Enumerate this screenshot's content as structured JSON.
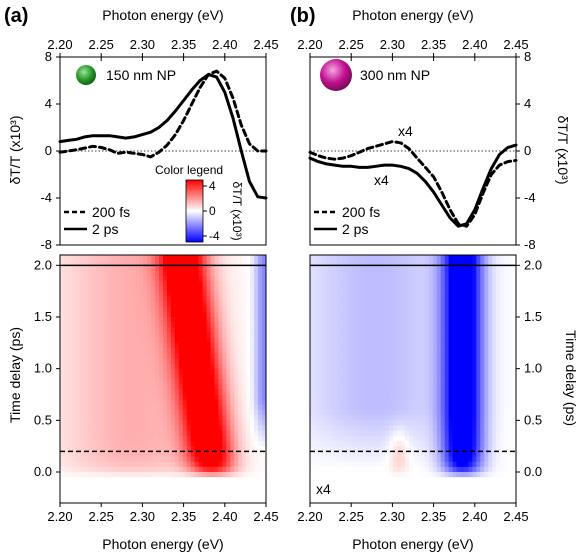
{
  "panels": [
    {
      "id": "a",
      "label": "(a)",
      "np_label": "150 nm NP",
      "np_color": "#2a9a2a",
      "top_axis_label": "Photon energy (eV)",
      "bottom_axis_label": "Photon energy (eV)",
      "left_axis_label": "δT/T (x10³)",
      "time_axis_label": "Time delay (ps)",
      "legend": [
        "200 fs",
        "2 ps"
      ],
      "colorbar_title": "Color legend",
      "colorbar_label": "δT/T (x10³)",
      "colorbar_ticks": [
        "4",
        "0",
        "-4"
      ]
    },
    {
      "id": "b",
      "label": "(b)",
      "np_label": "300 nm NP",
      "np_color": "#c0108f",
      "top_axis_label": "Photon energy (eV)",
      "bottom_axis_label": "Photon energy (eV)",
      "right_axis_label": "δT/T (x10³)",
      "time_axis_label": "Time delay (ps)",
      "legend": [
        "200 fs",
        "2 ps"
      ],
      "annotations": [
        "x4",
        "x4",
        "x4"
      ]
    }
  ],
  "chart_data": [
    {
      "type": "line",
      "panel": "a",
      "xlim": [
        2.2,
        2.45
      ],
      "ylim": [
        -8,
        8
      ],
      "x_ticks": [
        "2.20",
        "2.25",
        "2.30",
        "2.35",
        "2.40",
        "2.45"
      ],
      "y_ticks": [
        "8",
        "4",
        "0",
        "-4",
        "-8"
      ],
      "series": [
        {
          "name": "200 fs",
          "style": "dashed",
          "x": [
            2.2,
            2.22,
            2.24,
            2.25,
            2.26,
            2.27,
            2.28,
            2.29,
            2.3,
            2.31,
            2.32,
            2.33,
            2.34,
            2.35,
            2.36,
            2.37,
            2.38,
            2.39,
            2.4,
            2.41,
            2.42,
            2.43,
            2.44,
            2.45
          ],
          "y": [
            -0.1,
            0.1,
            0.4,
            0.3,
            0.1,
            -0.2,
            -0.1,
            -0.2,
            -0.3,
            -0.5,
            -0.1,
            0.5,
            1.4,
            2.6,
            4.0,
            5.4,
            6.5,
            6.8,
            6.2,
            4.5,
            2.2,
            0.6,
            0.0,
            0.0
          ]
        },
        {
          "name": "2 ps",
          "style": "solid",
          "x": [
            2.2,
            2.21,
            2.22,
            2.23,
            2.24,
            2.25,
            2.26,
            2.27,
            2.28,
            2.29,
            2.3,
            2.31,
            2.32,
            2.33,
            2.34,
            2.35,
            2.36,
            2.37,
            2.38,
            2.39,
            2.4,
            2.41,
            2.42,
            2.43,
            2.44,
            2.45
          ],
          "y": [
            0.8,
            0.9,
            1.0,
            1.2,
            1.3,
            1.3,
            1.3,
            1.2,
            1.1,
            1.2,
            1.4,
            1.6,
            2.0,
            2.6,
            3.4,
            4.3,
            5.2,
            6.0,
            6.5,
            6.3,
            5.0,
            2.8,
            0.0,
            -2.6,
            -3.9,
            -4.0
          ]
        }
      ]
    },
    {
      "type": "line",
      "panel": "b",
      "xlim": [
        2.2,
        2.45
      ],
      "ylim": [
        -8,
        8
      ],
      "x_ticks": [
        "2.20",
        "2.25",
        "2.30",
        "2.35",
        "2.40",
        "2.45"
      ],
      "y_ticks": [
        "8",
        "4",
        "0",
        "-4",
        "-8"
      ],
      "series": [
        {
          "name": "200 fs",
          "style": "dashed",
          "x": [
            2.2,
            2.21,
            2.22,
            2.23,
            2.24,
            2.25,
            2.26,
            2.27,
            2.28,
            2.29,
            2.3,
            2.31,
            2.32,
            2.33,
            2.34,
            2.35,
            2.36,
            2.37,
            2.38,
            2.39,
            2.4,
            2.41,
            2.42,
            2.43,
            2.44,
            2.45
          ],
          "y": [
            -0.1,
            -0.4,
            -0.6,
            -0.7,
            -0.6,
            -0.4,
            -0.1,
            0.2,
            0.4,
            0.6,
            0.8,
            0.7,
            0.2,
            -0.6,
            -1.4,
            -2.2,
            -3.5,
            -5.0,
            -6.2,
            -6.4,
            -5.4,
            -3.6,
            -2.0,
            -1.2,
            -0.9,
            -0.8
          ]
        },
        {
          "name": "2 ps",
          "style": "solid",
          "x": [
            2.2,
            2.21,
            2.22,
            2.23,
            2.24,
            2.25,
            2.26,
            2.27,
            2.28,
            2.29,
            2.3,
            2.31,
            2.32,
            2.33,
            2.34,
            2.35,
            2.36,
            2.37,
            2.38,
            2.39,
            2.4,
            2.41,
            2.42,
            2.43,
            2.44,
            2.45
          ],
          "y": [
            -0.6,
            -0.9,
            -1.1,
            -1.2,
            -1.3,
            -1.3,
            -1.4,
            -1.4,
            -1.3,
            -1.2,
            -1.2,
            -1.3,
            -1.5,
            -1.9,
            -2.6,
            -3.5,
            -4.6,
            -5.7,
            -6.4,
            -6.2,
            -5.0,
            -3.2,
            -1.5,
            -0.3,
            0.3,
            0.5
          ]
        }
      ]
    },
    {
      "type": "heatmap",
      "panel": "a",
      "xlim": [
        2.2,
        2.45
      ],
      "ylim": [
        -0.3,
        2.1
      ],
      "x_ticks": [
        "2.20",
        "2.25",
        "2.30",
        "2.35",
        "2.40",
        "2.45"
      ],
      "y_ticks": [
        "2.0",
        "1.5",
        "1.0",
        "0.5",
        "0.0"
      ],
      "color_range": [
        -5,
        5
      ],
      "reference_lines": [
        {
          "t": 2.0,
          "style": "solid"
        },
        {
          "t": 0.2,
          "style": "dashed"
        }
      ]
    },
    {
      "type": "heatmap",
      "panel": "b",
      "xlim": [
        2.2,
        2.45
      ],
      "ylim": [
        -0.3,
        2.1
      ],
      "x_ticks": [
        "2.20",
        "2.25",
        "2.30",
        "2.35",
        "2.40",
        "2.45"
      ],
      "y_ticks": [
        "2.0",
        "1.5",
        "1.0",
        "0.5",
        "0.0"
      ],
      "color_range": [
        -5,
        5
      ],
      "reference_lines": [
        {
          "t": 2.0,
          "style": "solid"
        },
        {
          "t": 0.2,
          "style": "dashed"
        }
      ]
    }
  ]
}
